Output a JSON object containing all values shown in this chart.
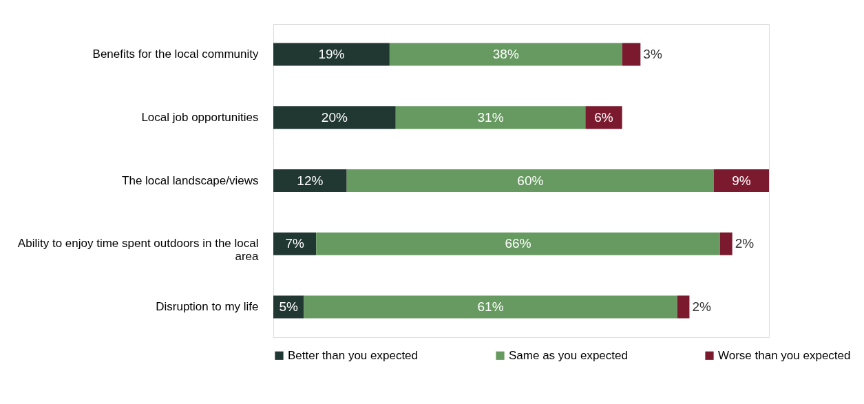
{
  "chart_data": {
    "type": "bar",
    "orientation": "horizontal",
    "stacked": true,
    "tick_labels": "y",
    "grid": false,
    "legend": "bottom",
    "categories": [
      "Benefits for the local community",
      "Local job opportunities",
      "The local landscape/views",
      "Ability to enjoy time spent outdoors in the local area",
      "Disruption to my life"
    ],
    "series": [
      {
        "name": "Better than you expected",
        "color": "#213731",
        "values": [
          19,
          20,
          12,
          7,
          5
        ],
        "value_labels": [
          "19%",
          "20%",
          "12%",
          "7%",
          "5%"
        ]
      },
      {
        "name": "Same as you expected",
        "color": "#679a61",
        "values": [
          38,
          31,
          60,
          66,
          61
        ],
        "value_labels": [
          "38%",
          "31%",
          "60%",
          "66%",
          "61%"
        ]
      },
      {
        "name": "Worse than you expected",
        "color": "#7b1a2e",
        "values": [
          3,
          6,
          9,
          2,
          2
        ],
        "value_labels": [
          "3%",
          "6%",
          "9%",
          "2%",
          "2%"
        ]
      }
    ]
  }
}
